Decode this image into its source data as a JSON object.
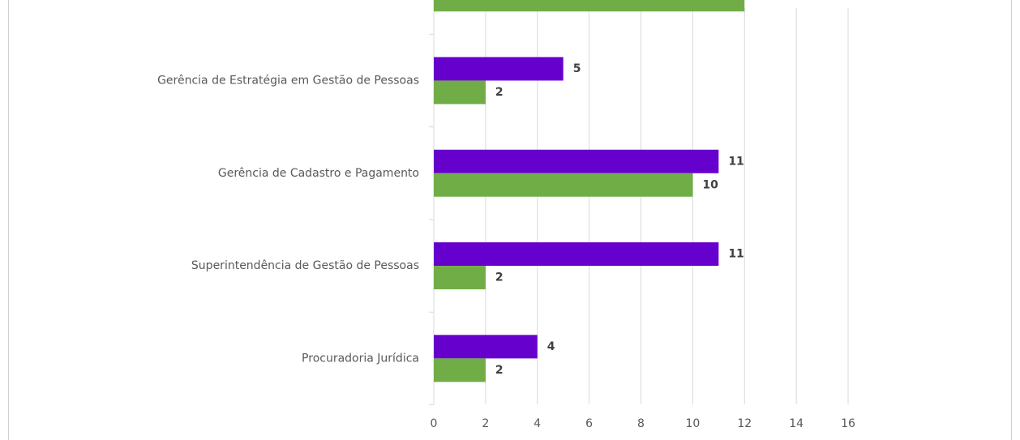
{
  "chart_data": {
    "type": "bar",
    "orientation": "horizontal",
    "categories": [
      null,
      "Gerência de Estratégia em Gestão de Pessoas",
      "Gerência de Cadastro e Pagamento",
      "Superintendência de Gestão de Pessoas",
      "Procuradoria Jurídica"
    ],
    "series": [
      {
        "color": "#6600cc",
        "values": [
          null,
          5,
          11,
          11,
          4
        ],
        "value_labels": [
          null,
          "5",
          "11",
          "11",
          "4"
        ]
      },
      {
        "color": "#70ad47",
        "values": [
          12,
          2,
          10,
          2,
          2
        ],
        "value_labels": [
          null,
          "2",
          "10",
          "2",
          "2"
        ]
      }
    ],
    "xlim": [
      0,
      16
    ],
    "xticks": [
      0,
      2,
      4,
      6,
      8,
      10,
      12,
      14,
      16
    ],
    "grid": true
  }
}
